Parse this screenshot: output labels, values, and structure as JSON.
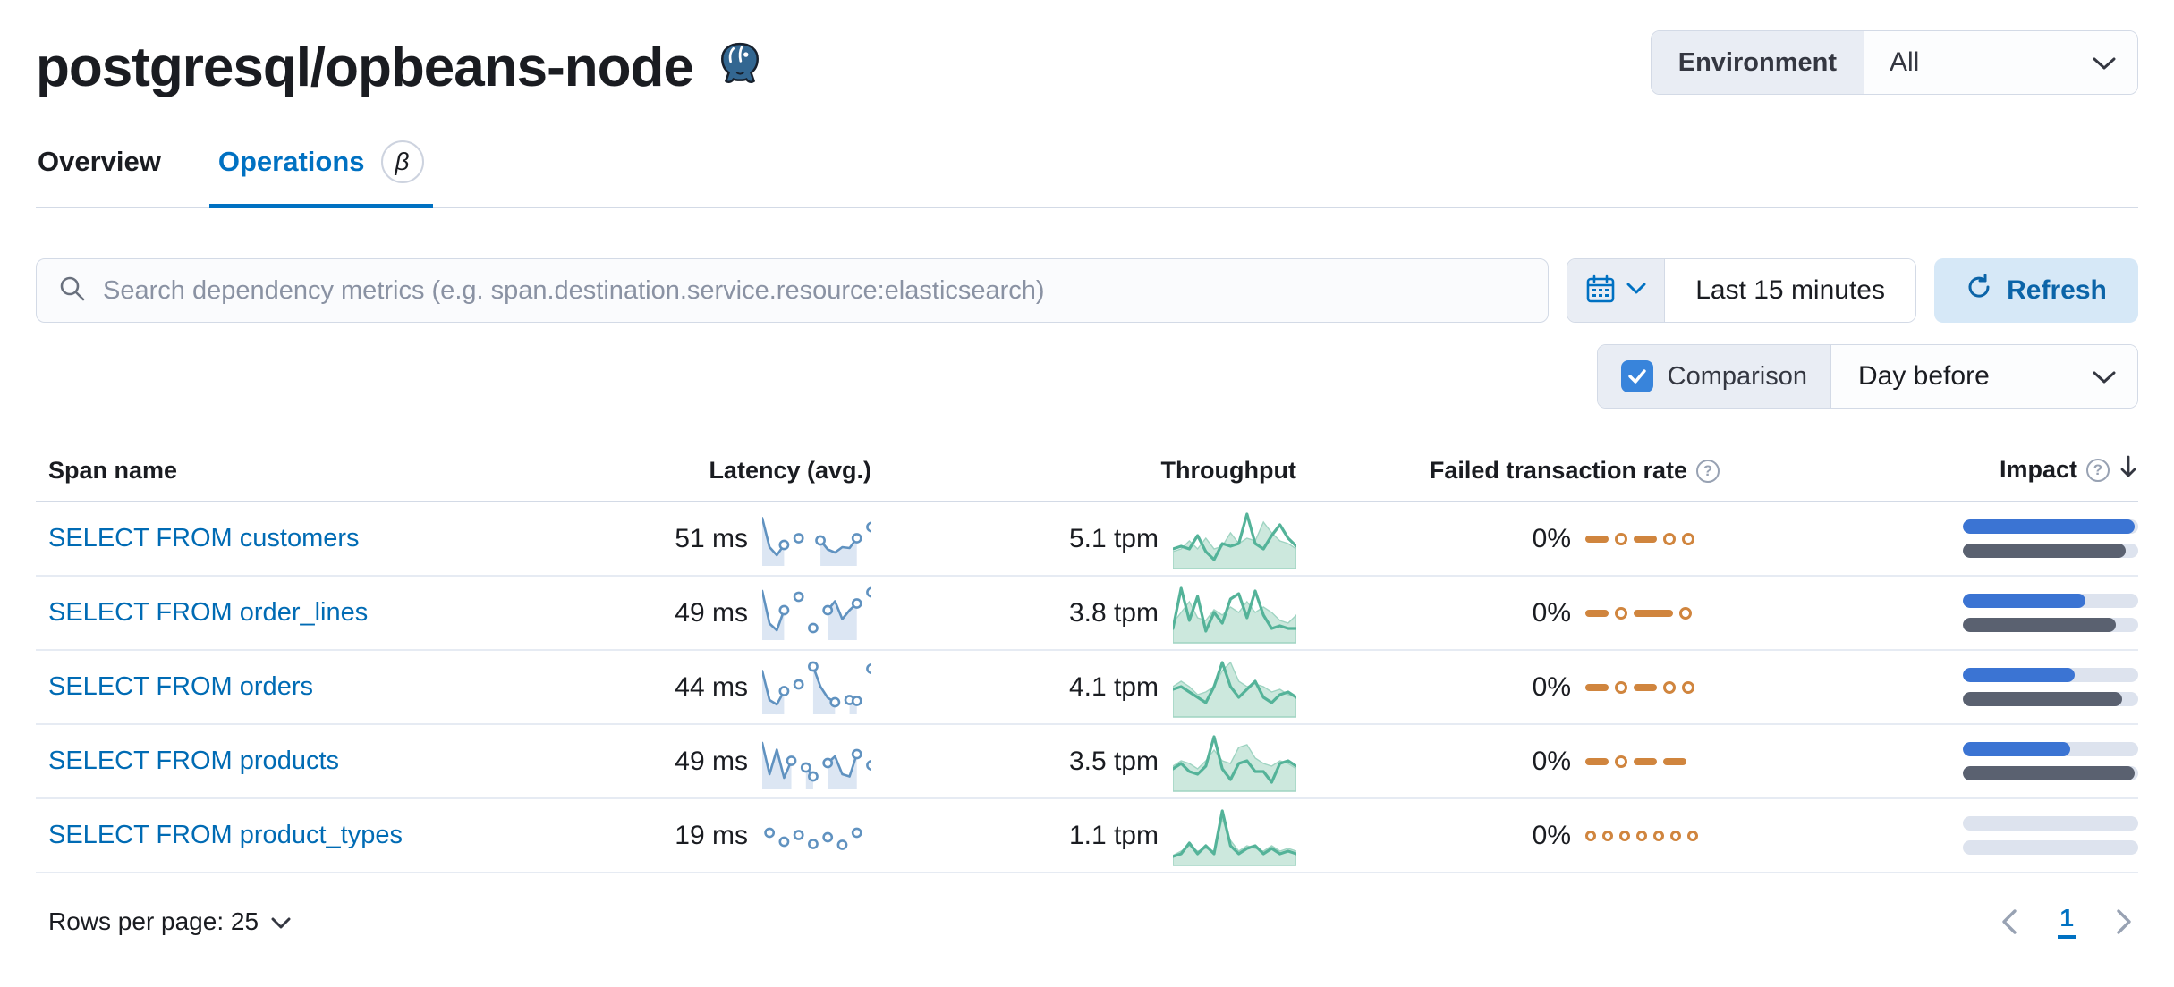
{
  "page": {
    "title": "postgresql/opbeans-node"
  },
  "environment": {
    "label": "Environment",
    "value": "All"
  },
  "tabs": {
    "overview": "Overview",
    "operations": "Operations",
    "beta_badge": "β"
  },
  "search": {
    "placeholder": "Search dependency metrics (e.g. span.destination.service.resource:elasticsearch)"
  },
  "time": {
    "range": "Last 15 minutes",
    "refresh_label": "Refresh"
  },
  "comparison": {
    "label": "Comparison",
    "value": "Day before",
    "checked": true
  },
  "table": {
    "headers": {
      "span_name": "Span name",
      "latency": "Latency (avg.)",
      "throughput": "Throughput",
      "failed_rate": "Failed transaction rate",
      "impact": "Impact"
    },
    "rows": [
      {
        "span_name": "SELECT FROM customers",
        "latency": "51 ms",
        "throughput": "5.1 tpm",
        "failed_rate": "0%",
        "latency_spark": [
          0.95,
          0.3,
          0.12,
          0.35,
          null,
          0.5,
          null,
          null,
          0.45,
          0.25,
          0.18,
          0.3,
          0.28,
          0.5,
          null,
          0.75
        ],
        "throughput_spark": {
          "current": [
            0.3,
            0.35,
            0.3,
            0.55,
            0.25,
            0.1,
            0.4,
            0.35,
            0.4,
            0.95,
            0.4,
            0.3,
            0.55,
            0.75,
            0.5,
            0.35
          ],
          "previous": [
            0.25,
            0.3,
            0.45,
            0.3,
            0.5,
            0.3,
            0.35,
            0.6,
            0.4,
            0.5,
            0.45,
            0.8,
            0.6,
            0.45,
            0.4,
            0.3
          ]
        },
        "failed_spark": [
          "dash",
          "dot",
          "dash",
          "dot",
          "dot"
        ],
        "impact": {
          "current": 98,
          "previous": 93
        }
      },
      {
        "span_name": "SELECT FROM order_lines",
        "latency": "49 ms",
        "throughput": "3.8 tpm",
        "failed_rate": "0%",
        "latency_spark": [
          0.98,
          0.25,
          0.1,
          0.55,
          null,
          0.85,
          null,
          0.15,
          null,
          0.55,
          0.75,
          0.35,
          0.55,
          0.7,
          null,
          0.95
        ],
        "throughput_spark": {
          "current": [
            0.2,
            0.95,
            0.35,
            0.8,
            0.15,
            0.5,
            0.3,
            0.75,
            0.85,
            0.4,
            0.9,
            0.45,
            0.2,
            0.25,
            0.2,
            0.2
          ],
          "previous": [
            0.3,
            0.5,
            0.7,
            0.4,
            0.35,
            0.55,
            0.45,
            0.6,
            0.5,
            0.7,
            0.5,
            0.6,
            0.5,
            0.35,
            0.3,
            0.45
          ]
        },
        "failed_spark": [
          "dash",
          "dot",
          "dashlong",
          "dot"
        ],
        "impact": {
          "current": 70,
          "previous": 87
        }
      },
      {
        "span_name": "SELECT FROM orders",
        "latency": "44 ms",
        "throughput": "4.1 tpm",
        "failed_rate": "0%",
        "latency_spark": [
          0.85,
          0.2,
          0.1,
          0.4,
          null,
          0.55,
          null,
          0.95,
          0.5,
          0.25,
          0.15,
          null,
          0.2,
          0.18,
          null,
          0.9
        ],
        "throughput_spark": {
          "current": [
            0.45,
            0.5,
            0.4,
            0.3,
            0.2,
            0.5,
            0.95,
            0.5,
            0.3,
            0.45,
            0.6,
            0.3,
            0.2,
            0.35,
            0.4,
            0.3
          ],
          "previous": [
            0.5,
            0.6,
            0.5,
            0.35,
            0.4,
            0.5,
            0.8,
            0.95,
            0.6,
            0.5,
            0.55,
            0.5,
            0.4,
            0.45,
            0.35,
            0.3
          ]
        },
        "failed_spark": [
          "dash",
          "dot",
          "dash",
          "dot",
          "dot"
        ],
        "impact": {
          "current": 64,
          "previous": 91
        }
      },
      {
        "span_name": "SELECT FROM products",
        "latency": "49 ms",
        "throughput": "3.5 tpm",
        "failed_rate": "0%",
        "latency_spark": [
          0.9,
          0.2,
          0.75,
          0.12,
          0.5,
          null,
          0.35,
          0.15,
          null,
          0.45,
          0.6,
          0.2,
          0.15,
          0.65,
          null,
          0.4
        ],
        "throughput_spark": {
          "current": [
            0.35,
            0.45,
            0.3,
            0.25,
            0.4,
            0.95,
            0.35,
            0.15,
            0.45,
            0.5,
            0.3,
            0.3,
            0.1,
            0.45,
            0.5,
            0.4
          ],
          "previous": [
            0.4,
            0.5,
            0.45,
            0.35,
            0.5,
            0.7,
            0.5,
            0.45,
            0.75,
            0.8,
            0.55,
            0.45,
            0.4,
            0.5,
            0.45,
            0.35
          ]
        },
        "failed_spark": [
          "dash",
          "dot",
          "dash",
          "dash"
        ],
        "impact": {
          "current": 61,
          "previous": 98
        }
      },
      {
        "span_name": "SELECT FROM product_types",
        "latency": "19 ms",
        "throughput": "1.1 tpm",
        "failed_rate": "0%",
        "latency_spark": [
          null,
          0.55,
          null,
          0.35,
          null,
          0.5,
          null,
          0.3,
          null,
          0.45,
          null,
          0.28,
          null,
          0.55,
          null,
          null
        ],
        "throughput_spark": {
          "current": [
            0.1,
            0.15,
            0.35,
            0.15,
            0.3,
            0.15,
            0.95,
            0.3,
            0.15,
            0.25,
            0.3,
            0.15,
            0.25,
            0.15,
            0.2,
            0.15
          ],
          "previous": [
            0.12,
            0.2,
            0.3,
            0.2,
            0.25,
            0.2,
            0.8,
            0.4,
            0.2,
            0.3,
            0.25,
            0.2,
            0.3,
            0.2,
            0.25,
            0.2
          ]
        },
        "failed_spark": [
          "dotsmall",
          "dotsmall",
          "dotsmall",
          "dotsmall",
          "dotsmall",
          "dotsmall",
          "dotsmall"
        ],
        "impact": {
          "current": 0,
          "previous": 0
        }
      }
    ]
  },
  "footer": {
    "rows_per_page": "Rows per page: 25",
    "current_page": "1"
  },
  "colors": {
    "accent": "#0071c2",
    "link": "#006bb4",
    "title": "#1a1c21",
    "text": "#343741",
    "muted": "#69707d",
    "placeholder": "#8a92a3",
    "border": "#d3dae6",
    "row_border": "#e6ebf3",
    "prepend_bg": "#e9edf4",
    "refresh_bg": "#d6e8f7",
    "refresh_text": "#0b64a8",
    "checkbox": "#3884db",
    "spark_blue": "#6092C0",
    "spark_blue_fill": "#dce6f3",
    "spark_green": "#54B399",
    "spark_green_fill": "#c3e4d7",
    "spark_orange": "#d0853e",
    "impact_blue": "#3b74d3",
    "impact_gray": "#5a6170",
    "impact_track": "#dde3ee",
    "icon_gray": "#98a2b3"
  }
}
